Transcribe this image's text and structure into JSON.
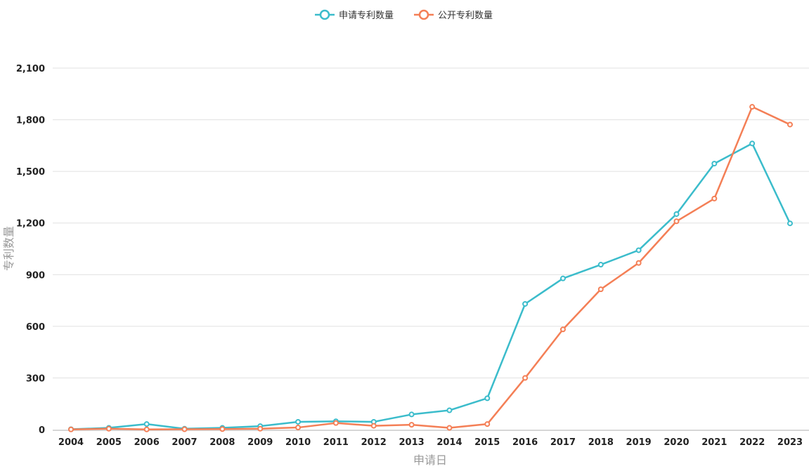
{
  "chart_data": {
    "type": "line",
    "title": "",
    "xlabel": "申请日",
    "ylabel": "专利数量",
    "x": [
      "2004",
      "2005",
      "2006",
      "2007",
      "2008",
      "2009",
      "2010",
      "2011",
      "2012",
      "2013",
      "2014",
      "2015",
      "2016",
      "2017",
      "2018",
      "2019",
      "2020",
      "2021",
      "2022",
      "2023"
    ],
    "ylim": [
      0,
      2100
    ],
    "yticks": [
      0,
      300,
      600,
      900,
      1200,
      1500,
      1800,
      2100
    ],
    "ytick_labels": [
      "0",
      "300",
      "600",
      "900",
      "1,200",
      "1,500",
      "1,800",
      "2,100"
    ],
    "grid": true,
    "legend_position": "top-center",
    "series": [
      {
        "name": "申请专利数量",
        "color": "#3bbccb",
        "values": [
          2,
          10,
          32,
          5,
          10,
          20,
          45,
          48,
          45,
          88,
          112,
          182,
          730,
          878,
          958,
          1042,
          1252,
          1545,
          1662,
          1198
        ]
      },
      {
        "name": "公开专利数量",
        "color": "#f47f56",
        "values": [
          1,
          5,
          1,
          2,
          3,
          5,
          12,
          38,
          22,
          28,
          10,
          32,
          300,
          582,
          815,
          968,
          1210,
          1342,
          1875,
          1772
        ]
      }
    ]
  }
}
